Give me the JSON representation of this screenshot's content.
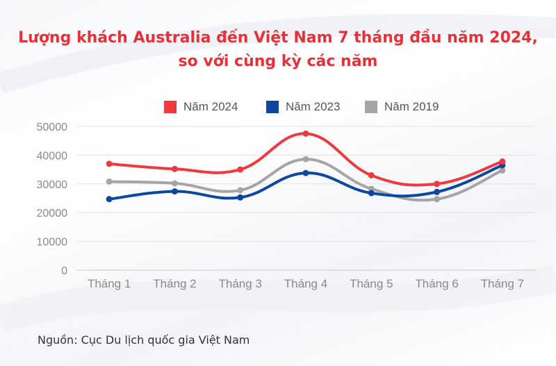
{
  "title_line1": "Lượng khách Australia đến Việt Nam 7 tháng đầu năm 2024,",
  "title_line2": "so với cùng kỳ các năm",
  "source": "Nguồn: Cục Du lịch quốc gia Việt Nam",
  "chart_data": {
    "type": "line",
    "categories": [
      "Tháng 1",
      "Tháng 2",
      "Tháng 3",
      "Tháng 4",
      "Tháng 5",
      "Tháng 6",
      "Tháng 7"
    ],
    "ylim": [
      0,
      50000
    ],
    "yticks": [
      "0",
      "10000",
      "20000",
      "30000",
      "40000",
      "50000"
    ],
    "grid": true,
    "legend_position": "top",
    "series": [
      {
        "name": "Năm 2024",
        "color": "#ee3a3f",
        "values": [
          37000,
          35200,
          35000,
          47500,
          33000,
          30000,
          37800
        ]
      },
      {
        "name": "Năm 2023",
        "color": "#0d47a1",
        "values": [
          24700,
          27400,
          25300,
          33800,
          26800,
          27200,
          36500
        ]
      },
      {
        "name": "Năm 2019",
        "color": "#a5a5a5",
        "values": [
          30800,
          30200,
          27800,
          38600,
          28300,
          24700,
          34700
        ]
      }
    ]
  }
}
